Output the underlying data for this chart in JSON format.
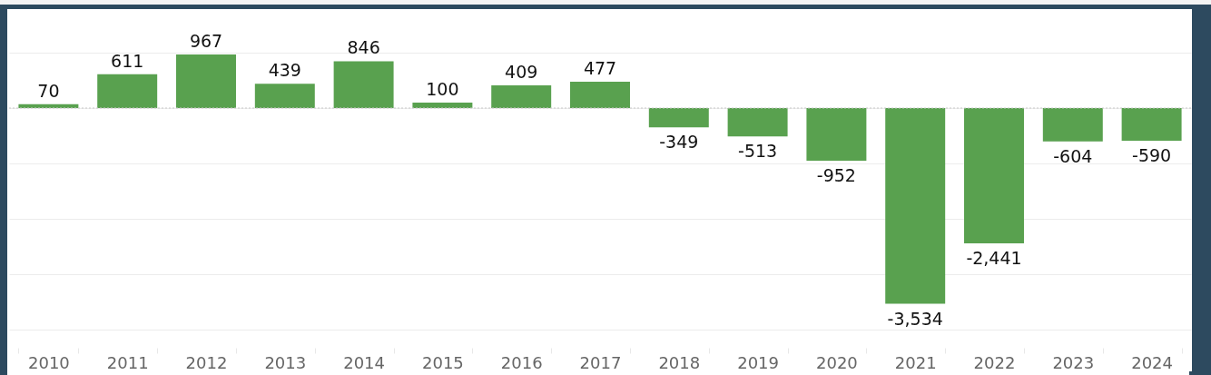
{
  "chart_data": {
    "type": "bar",
    "categories": [
      "2010",
      "2011",
      "2012",
      "2013",
      "2014",
      "2015",
      "2016",
      "2017",
      "2018",
      "2019",
      "2020",
      "2021",
      "2022",
      "2023",
      "2024"
    ],
    "values": [
      70,
      611,
      967,
      439,
      846,
      100,
      409,
      477,
      -349,
      -513,
      -952,
      -3534,
      -2441,
      -604,
      -590
    ],
    "value_labels": [
      "70",
      "611",
      "967",
      "439",
      "846",
      "100",
      "409",
      "477",
      "-349",
      "-513",
      "-952",
      "-3,534",
      "-2,441",
      "-604",
      "-590"
    ],
    "color": "#59a14f",
    "yticks": [
      {
        "value": -4000,
        "label": null
      },
      {
        "value": -3000,
        "label": null
      },
      {
        "value": -2000,
        "label": null
      },
      {
        "value": -1000,
        "label": null
      },
      {
        "value": 0,
        "label": null
      },
      {
        "value": 1000,
        "label": null
      }
    ],
    "grid": "y",
    "ref_lines": [
      {
        "axis": "y",
        "value": 0,
        "line_style": "dotted",
        "color": "#c8c8c8"
      }
    ]
  }
}
